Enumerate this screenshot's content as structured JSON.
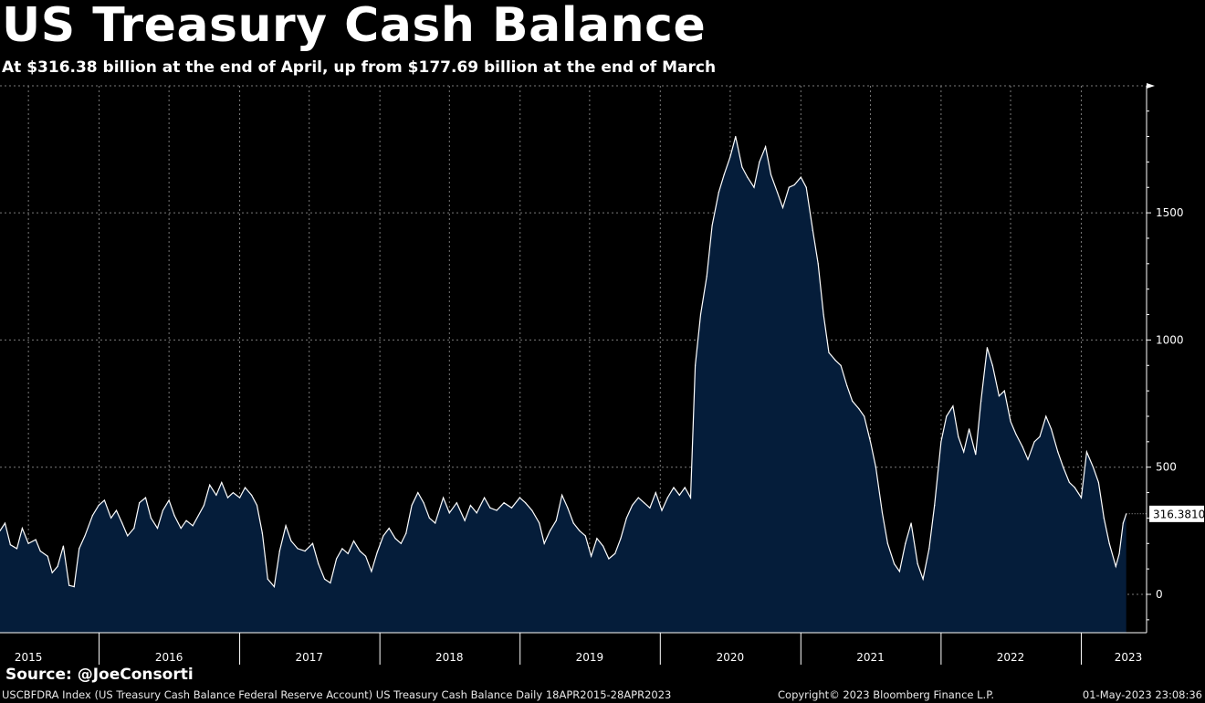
{
  "chart_data": {
    "type": "area",
    "title": "US Treasury Cash Balance",
    "subtitle": "At $316.38 billion at the end of April, up from $177.69 billion at the end of March",
    "ylim": [
      -150,
      2000
    ],
    "yticks": [
      0,
      500,
      1000,
      1500
    ],
    "xlim": [
      "2015-04-18",
      "2023-06-20"
    ],
    "x_tick_labels": [
      "2015",
      "2016",
      "2017",
      "2018",
      "2019",
      "2020",
      "2021",
      "2022",
      "2023"
    ],
    "grid": true,
    "y_axis_side": "right",
    "last_value_label": "316.3810",
    "series": [
      {
        "color": "#ffffff",
        "fill": "#051d3a",
        "points": [
          [
            "2015-04-18",
            250
          ],
          [
            "2015-05-01",
            280
          ],
          [
            "2015-05-15",
            195
          ],
          [
            "2015-06-01",
            180
          ],
          [
            "2015-06-15",
            260
          ],
          [
            "2015-07-01",
            200
          ],
          [
            "2015-07-20",
            215
          ],
          [
            "2015-08-01",
            170
          ],
          [
            "2015-08-20",
            150
          ],
          [
            "2015-09-01",
            85
          ],
          [
            "2015-09-15",
            110
          ],
          [
            "2015-09-30",
            190
          ],
          [
            "2015-10-15",
            35
          ],
          [
            "2015-10-28",
            30
          ],
          [
            "2015-11-10",
            180
          ],
          [
            "2015-11-25",
            230
          ],
          [
            "2015-12-15",
            310
          ],
          [
            "2015-12-31",
            350
          ],
          [
            "2016-01-15",
            370
          ],
          [
            "2016-02-01",
            300
          ],
          [
            "2016-02-15",
            330
          ],
          [
            "2016-03-01",
            280
          ],
          [
            "2016-03-15",
            230
          ],
          [
            "2016-04-01",
            260
          ],
          [
            "2016-04-15",
            360
          ],
          [
            "2016-05-01",
            380
          ],
          [
            "2016-05-15",
            300
          ],
          [
            "2016-06-01",
            260
          ],
          [
            "2016-06-15",
            330
          ],
          [
            "2016-07-01",
            370
          ],
          [
            "2016-07-15",
            310
          ],
          [
            "2016-08-01",
            260
          ],
          [
            "2016-08-15",
            290
          ],
          [
            "2016-09-01",
            270
          ],
          [
            "2016-09-30",
            350
          ],
          [
            "2016-10-15",
            430
          ],
          [
            "2016-11-01",
            390
          ],
          [
            "2016-11-15",
            440
          ],
          [
            "2016-12-01",
            380
          ],
          [
            "2016-12-15",
            400
          ],
          [
            "2017-01-01",
            380
          ],
          [
            "2017-01-15",
            420
          ],
          [
            "2017-02-01",
            390
          ],
          [
            "2017-02-15",
            350
          ],
          [
            "2017-03-01",
            240
          ],
          [
            "2017-03-15",
            60
          ],
          [
            "2017-04-01",
            30
          ],
          [
            "2017-04-15",
            170
          ],
          [
            "2017-05-01",
            270
          ],
          [
            "2017-05-15",
            210
          ],
          [
            "2017-06-01",
            180
          ],
          [
            "2017-06-20",
            170
          ],
          [
            "2017-07-10",
            200
          ],
          [
            "2017-07-25",
            120
          ],
          [
            "2017-08-10",
            60
          ],
          [
            "2017-08-25",
            45
          ],
          [
            "2017-09-10",
            140
          ],
          [
            "2017-09-25",
            180
          ],
          [
            "2017-10-10",
            160
          ],
          [
            "2017-10-25",
            210
          ],
          [
            "2017-11-10",
            170
          ],
          [
            "2017-11-25",
            150
          ],
          [
            "2017-12-10",
            90
          ],
          [
            "2017-12-25",
            165
          ],
          [
            "2018-01-10",
            230
          ],
          [
            "2018-01-25",
            260
          ],
          [
            "2018-02-10",
            220
          ],
          [
            "2018-02-25",
            200
          ],
          [
            "2018-03-10",
            240
          ],
          [
            "2018-03-25",
            350
          ],
          [
            "2018-04-10",
            400
          ],
          [
            "2018-04-25",
            360
          ],
          [
            "2018-05-10",
            300
          ],
          [
            "2018-05-25",
            280
          ],
          [
            "2018-06-15",
            380
          ],
          [
            "2018-07-01",
            320
          ],
          [
            "2018-07-20",
            360
          ],
          [
            "2018-08-10",
            290
          ],
          [
            "2018-08-25",
            350
          ],
          [
            "2018-09-10",
            320
          ],
          [
            "2018-09-30",
            380
          ],
          [
            "2018-10-15",
            340
          ],
          [
            "2018-11-01",
            330
          ],
          [
            "2018-11-20",
            360
          ],
          [
            "2018-12-10",
            340
          ],
          [
            "2018-12-31",
            380
          ],
          [
            "2019-01-15",
            360
          ],
          [
            "2019-02-01",
            330
          ],
          [
            "2019-02-20",
            280
          ],
          [
            "2019-03-05",
            200
          ],
          [
            "2019-03-20",
            250
          ],
          [
            "2019-04-05",
            290
          ],
          [
            "2019-04-20",
            390
          ],
          [
            "2019-05-05",
            340
          ],
          [
            "2019-05-20",
            280
          ],
          [
            "2019-06-05",
            250
          ],
          [
            "2019-06-20",
            230
          ],
          [
            "2019-07-05",
            150
          ],
          [
            "2019-07-20",
            220
          ],
          [
            "2019-08-05",
            190
          ],
          [
            "2019-08-20",
            140
          ],
          [
            "2019-09-05",
            160
          ],
          [
            "2019-09-20",
            220
          ],
          [
            "2019-10-05",
            300
          ],
          [
            "2019-10-20",
            350
          ],
          [
            "2019-11-05",
            380
          ],
          [
            "2019-11-20",
            360
          ],
          [
            "2019-12-05",
            340
          ],
          [
            "2019-12-20",
            400
          ],
          [
            "2020-01-05",
            330
          ],
          [
            "2020-01-20",
            380
          ],
          [
            "2020-02-05",
            420
          ],
          [
            "2020-02-20",
            390
          ],
          [
            "2020-03-05",
            420
          ],
          [
            "2020-03-20",
            380
          ],
          [
            "2020-04-01",
            900
          ],
          [
            "2020-04-15",
            1100
          ],
          [
            "2020-05-01",
            1250
          ],
          [
            "2020-05-15",
            1450
          ],
          [
            "2020-06-01",
            1580
          ],
          [
            "2020-06-15",
            1650
          ],
          [
            "2020-07-01",
            1720
          ],
          [
            "2020-07-15",
            1800
          ],
          [
            "2020-08-01",
            1680
          ],
          [
            "2020-08-15",
            1640
          ],
          [
            "2020-09-01",
            1600
          ],
          [
            "2020-09-15",
            1700
          ],
          [
            "2020-10-01",
            1760
          ],
          [
            "2020-10-15",
            1650
          ],
          [
            "2020-11-01",
            1580
          ],
          [
            "2020-11-15",
            1520
          ],
          [
            "2020-12-01",
            1600
          ],
          [
            "2020-12-15",
            1610
          ],
          [
            "2021-01-01",
            1640
          ],
          [
            "2021-01-15",
            1600
          ],
          [
            "2021-02-01",
            1430
          ],
          [
            "2021-02-15",
            1300
          ],
          [
            "2021-03-01",
            1100
          ],
          [
            "2021-03-15",
            950
          ],
          [
            "2021-04-01",
            920
          ],
          [
            "2021-04-15",
            900
          ],
          [
            "2021-05-01",
            820
          ],
          [
            "2021-05-15",
            760
          ],
          [
            "2021-06-01",
            730
          ],
          [
            "2021-06-15",
            700
          ],
          [
            "2021-07-01",
            600
          ],
          [
            "2021-07-15",
            500
          ],
          [
            "2021-08-01",
            320
          ],
          [
            "2021-08-15",
            200
          ],
          [
            "2021-09-01",
            120
          ],
          [
            "2021-09-15",
            90
          ],
          [
            "2021-09-30",
            200
          ],
          [
            "2021-10-15",
            280
          ],
          [
            "2021-11-01",
            120
          ],
          [
            "2021-11-15",
            60
          ],
          [
            "2021-12-01",
            180
          ],
          [
            "2021-12-15",
            350
          ],
          [
            "2022-01-01",
            600
          ],
          [
            "2022-01-15",
            700
          ],
          [
            "2022-02-01",
            740
          ],
          [
            "2022-02-15",
            620
          ],
          [
            "2022-03-01",
            560
          ],
          [
            "2022-03-15",
            650
          ],
          [
            "2022-04-01",
            550
          ],
          [
            "2022-04-15",
            760
          ],
          [
            "2022-05-01",
            970
          ],
          [
            "2022-05-15",
            900
          ],
          [
            "2022-06-01",
            780
          ],
          [
            "2022-06-15",
            800
          ],
          [
            "2022-07-01",
            680
          ],
          [
            "2022-07-15",
            630
          ],
          [
            "2022-08-01",
            580
          ],
          [
            "2022-08-15",
            530
          ],
          [
            "2022-09-01",
            600
          ],
          [
            "2022-09-15",
            620
          ],
          [
            "2022-10-01",
            700
          ],
          [
            "2022-10-15",
            650
          ],
          [
            "2022-11-01",
            560
          ],
          [
            "2022-11-15",
            500
          ],
          [
            "2022-12-01",
            440
          ],
          [
            "2022-12-15",
            420
          ],
          [
            "2023-01-01",
            380
          ],
          [
            "2023-01-15",
            560
          ],
          [
            "2023-02-01",
            500
          ],
          [
            "2023-02-15",
            440
          ],
          [
            "2023-03-01",
            300
          ],
          [
            "2023-03-15",
            200
          ],
          [
            "2023-04-01",
            110
          ],
          [
            "2023-04-10",
            160
          ],
          [
            "2023-04-20",
            280
          ],
          [
            "2023-04-28",
            316.381
          ]
        ]
      }
    ]
  },
  "source": "Source: @JoeConsorti",
  "footer": {
    "left": "USCBFDRA Index (US Treasury Cash Balance Federal Reserve Account) US Treasury Cash Balance  Daily 18APR2015-28APR2023",
    "middle": "Copyright© 2023 Bloomberg Finance L.P.",
    "right": "01-May-2023 23:08:36"
  }
}
